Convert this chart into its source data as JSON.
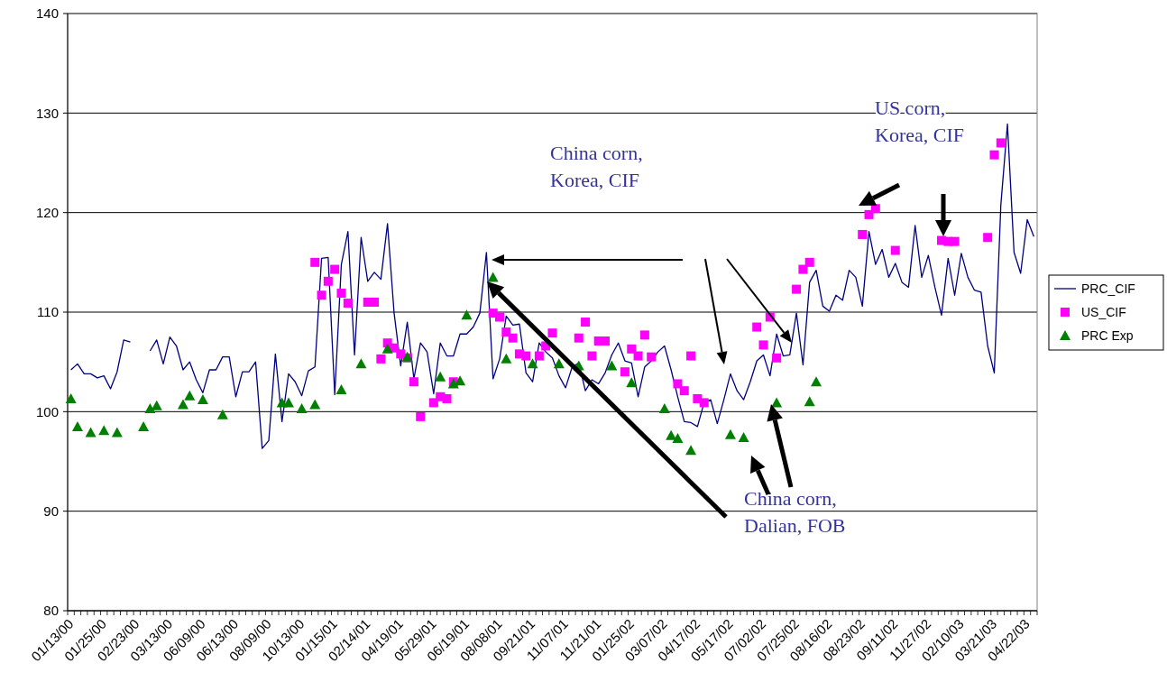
{
  "chart_data": {
    "type": "line",
    "categories": [
      "01/13/00",
      null,
      null,
      null,
      null,
      "01/25/00",
      null,
      null,
      null,
      null,
      "02/23/00",
      null,
      null,
      null,
      null,
      "03/13/00",
      null,
      null,
      null,
      null,
      "06/09/00",
      null,
      null,
      null,
      null,
      "06/13/00",
      null,
      null,
      null,
      null,
      "08/09/00",
      null,
      null,
      null,
      null,
      "10/13/00",
      null,
      null,
      null,
      null,
      "01/15/01",
      null,
      null,
      null,
      null,
      "02/14/01",
      null,
      null,
      null,
      null,
      "04/19/01",
      null,
      null,
      null,
      null,
      "05/29/01",
      null,
      null,
      null,
      null,
      "06/19/01",
      null,
      null,
      null,
      null,
      "08/08/01",
      null,
      null,
      null,
      null,
      "09/21/01",
      null,
      null,
      null,
      null,
      "11/07/01",
      null,
      null,
      null,
      null,
      "11/21/01",
      null,
      null,
      null,
      null,
      "01/25/02",
      null,
      null,
      null,
      null,
      "03/07/02",
      null,
      null,
      null,
      null,
      "04/17/02",
      null,
      null,
      null,
      null,
      "05/17/02",
      null,
      null,
      null,
      null,
      "07/02/02",
      null,
      null,
      null,
      null,
      "07/25/02",
      null,
      null,
      null,
      null,
      "08/16/02",
      null,
      null,
      null,
      null,
      "08/23/02",
      null,
      null,
      null,
      null,
      "09/11/02",
      null,
      null,
      null,
      null,
      "11/27/02",
      null,
      null,
      null,
      null,
      "02/10/03",
      null,
      null,
      null,
      null,
      "03/21/03",
      null,
      null,
      null,
      null,
      "04/22/03",
      null
    ],
    "series": [
      {
        "name": "PRC_CIF",
        "color": "#000080",
        "marker": "none",
        "values": [
          104.2,
          104.8,
          103.8,
          103.8,
          103.4,
          103.6,
          102.3,
          104,
          107.2,
          107,
          null,
          null,
          106.1,
          107.2,
          104.8,
          107.5,
          106.6,
          104.2,
          105,
          103.2,
          101.9,
          104.2,
          104.2,
          105.5,
          105.5,
          101.5,
          104,
          104,
          105,
          96.3,
          97.1,
          105.8,
          99,
          103.8,
          103,
          101.6,
          104.1,
          104.5,
          115.4,
          115.5,
          101.7,
          114.8,
          118.1,
          105.7,
          117.5,
          113.1,
          114,
          113.3,
          118.9,
          109.9,
          104.6,
          109,
          103.3,
          106.9,
          106,
          101.8,
          106.9,
          105.6,
          105.6,
          107.8,
          107.8,
          108.5,
          109.9,
          116,
          103.3,
          105.3,
          109.6,
          108.7,
          108.8,
          103.9,
          103,
          106.9,
          106,
          105.4,
          103.6,
          102.4,
          104.5,
          104.9,
          102.1,
          103.2,
          102.8,
          103.9,
          105.7,
          106.9,
          105.1,
          104.9,
          101.5,
          104.5,
          105.1,
          106,
          106.6,
          104.2,
          101.5,
          99,
          98.9,
          98.5,
          100.9,
          101.2,
          98.8,
          101.2,
          103.8,
          102.1,
          101.2,
          103,
          105.1,
          105.7,
          103.6,
          107.8,
          105.6,
          105.7,
          109.9,
          104.7,
          113,
          114.2,
          110.6,
          110.1,
          111.7,
          111.2,
          114.2,
          113.5,
          110.6,
          118.1,
          114.8,
          116.3,
          113.5,
          114.9,
          113,
          112.5,
          118.7,
          113.5,
          115.7,
          112.5,
          109.7,
          115.4,
          111.7,
          115.9,
          113.5,
          112.2,
          112,
          106.6,
          103.9,
          120.8,
          128.9,
          116,
          113.9,
          119.3,
          117.6
        ]
      },
      {
        "name": "US_CIF",
        "type": "scatter",
        "color": "#ff00ff",
        "marker": "square",
        "values": [
          null,
          null,
          null,
          null,
          null,
          null,
          null,
          null,
          null,
          null,
          null,
          null,
          null,
          null,
          null,
          null,
          null,
          null,
          null,
          null,
          null,
          null,
          null,
          null,
          null,
          null,
          null,
          null,
          null,
          null,
          null,
          null,
          null,
          null,
          null,
          null,
          null,
          115,
          111.7,
          113.1,
          114.3,
          111.9,
          110.9,
          null,
          null,
          111,
          111,
          105.3,
          106.9,
          106.4,
          105.8,
          105.4,
          103,
          99.5,
          null,
          100.9,
          101.5,
          101.3,
          103,
          null,
          null,
          null,
          null,
          null,
          109.9,
          109.5,
          108,
          107.4,
          105.8,
          105.6,
          null,
          105.6,
          106.6,
          107.9,
          null,
          null,
          null,
          107.4,
          109,
          105.6,
          107.1,
          107.1,
          null,
          null,
          104,
          106.3,
          105.6,
          107.7,
          105.5,
          null,
          null,
          null,
          102.8,
          102.1,
          105.6,
          101.3,
          100.9,
          null,
          null,
          null,
          null,
          null,
          null,
          null,
          108.5,
          106.7,
          109.5,
          105.4,
          null,
          null,
          112.3,
          114.3,
          115,
          null,
          null,
          null,
          null,
          null,
          null,
          null,
          117.8,
          119.8,
          120.4,
          null,
          null,
          116.2,
          null,
          null,
          null,
          null,
          null,
          null,
          117.2,
          117.1,
          117.1,
          null,
          null,
          null,
          null,
          117.5,
          125.8,
          127,
          null,
          null,
          null,
          null,
          null
        ]
      },
      {
        "name": "PRC Exp",
        "type": "scatter",
        "color": "#008000",
        "marker": "triangle",
        "values": [
          101.3,
          98.5,
          null,
          97.9,
          null,
          98.1,
          null,
          97.9,
          null,
          null,
          null,
          98.5,
          100.3,
          100.6,
          null,
          null,
          null,
          100.7,
          101.6,
          null,
          101.2,
          null,
          null,
          99.7,
          null,
          null,
          null,
          null,
          null,
          null,
          null,
          null,
          100.9,
          100.9,
          null,
          100.3,
          null,
          100.7,
          null,
          null,
          null,
          102.2,
          null,
          null,
          104.8,
          null,
          null,
          null,
          106.3,
          null,
          null,
          105.5,
          null,
          null,
          null,
          null,
          103.5,
          null,
          102.8,
          103.1,
          109.7,
          null,
          null,
          null,
          113.5,
          null,
          105.3,
          null,
          null,
          null,
          104.8,
          null,
          null,
          null,
          104.8,
          null,
          null,
          104.6,
          null,
          null,
          null,
          null,
          104.6,
          null,
          null,
          102.9,
          null,
          null,
          null,
          null,
          100.3,
          97.6,
          97.3,
          null,
          96.1,
          null,
          null,
          null,
          null,
          null,
          97.7,
          null,
          97.4,
          null,
          null,
          null,
          null,
          100.9,
          null,
          null,
          null,
          null,
          101,
          103,
          null,
          null,
          null,
          null,
          null,
          null,
          null,
          null,
          null,
          null,
          null,
          null,
          null,
          null,
          null,
          null,
          null,
          null,
          null,
          null,
          null,
          null,
          null,
          null,
          null,
          null,
          null,
          null,
          null,
          null,
          null,
          null,
          null
        ]
      }
    ],
    "ylim": [
      80,
      140
    ],
    "yticks": [
      80,
      90,
      100,
      110,
      120,
      130,
      140
    ],
    "grid": "y",
    "legend": "right",
    "annotations": [
      "China corn, Korea, CIF",
      "US corn, Korea, CIF",
      "China corn, Dalian, FOB"
    ]
  }
}
